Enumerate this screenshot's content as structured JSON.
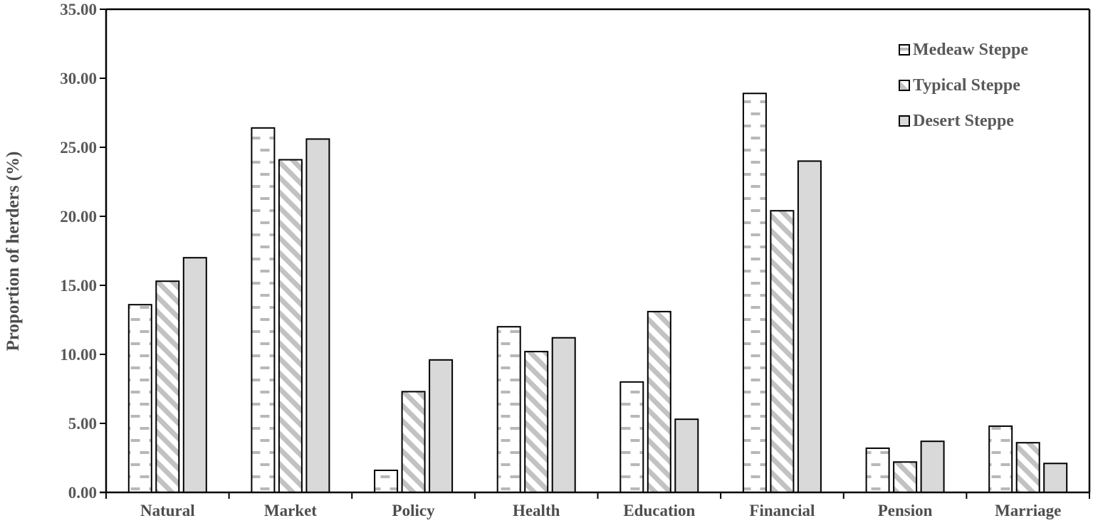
{
  "figure": {
    "background": "#ffffff",
    "tick_text_color": "#595959",
    "category_text_color": "#4d4d4d",
    "axis_color": "#000000",
    "bar_border_color": "#000000"
  },
  "chart_data": {
    "type": "bar",
    "title": "",
    "xlabel": "",
    "ylabel": "Proportion of herders (%)",
    "ylim": [
      0,
      35
    ],
    "ytick_step": 5,
    "ytick_labels": [
      "0.00",
      "5.00",
      "10.00",
      "15.00",
      "20.00",
      "25.00",
      "30.00",
      "35.00"
    ],
    "grid": false,
    "legend_position": "top-right-inside",
    "categories": [
      "Natural",
      "Market",
      "Policy",
      "Health",
      "Education",
      "Financial",
      "Pension",
      "Marriage"
    ],
    "series": [
      {
        "name": "Medeaw Steppe",
        "pattern": "horizontal-dash",
        "fill": "#ffffff",
        "pattern_color": "#b8b8b8",
        "values": [
          13.6,
          26.4,
          1.6,
          12.0,
          8.0,
          28.9,
          3.2,
          4.8
        ]
      },
      {
        "name": "Typical Steppe",
        "pattern": "diagonal-stripe",
        "fill": "#ffffff",
        "pattern_color": "#c2c2c2",
        "values": [
          15.3,
          24.1,
          7.3,
          10.2,
          13.1,
          20.4,
          2.2,
          3.6
        ]
      },
      {
        "name": "Desert Steppe",
        "pattern": "solid",
        "fill": "#d9d9d9",
        "pattern_color": "#d9d9d9",
        "values": [
          17.0,
          25.6,
          9.6,
          11.2,
          5.3,
          24.0,
          3.7,
          2.1
        ]
      }
    ]
  }
}
